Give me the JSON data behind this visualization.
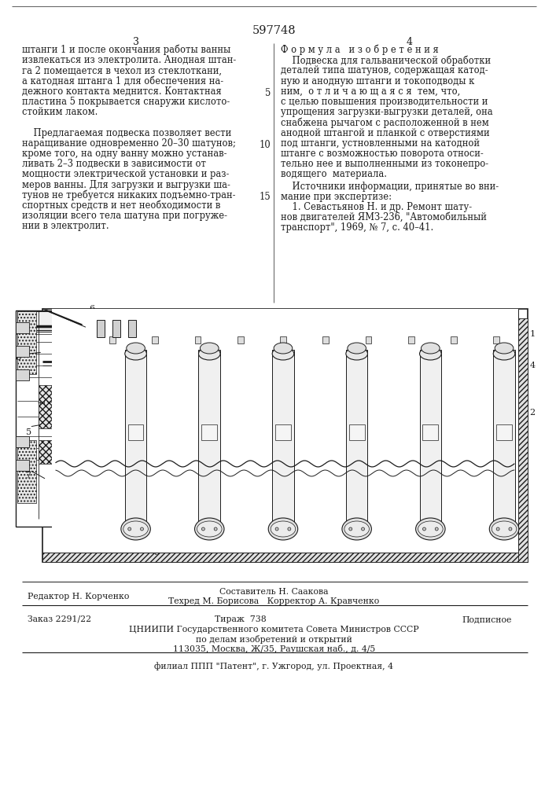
{
  "patent_number": "597748",
  "left_col_text": [
    "штанги 1 и после окончания работы ванны",
    "извлекаться из электролита. Анодная штан-",
    "га 2 помещается в чехол из стеклоткани,",
    "а катодная штанга 1 для обеспечения на-",
    "дежного контакта меднится. Контактная",
    "пластина 5 покрывается снаружи кислото-",
    "стойким лаком.",
    "",
    "    Предлагаемая подвеска позволяет вести",
    "наращивание одновременно 20–30 шатунов;",
    "кроме того, на одну ванну можно устанав-",
    "ливать 2–3 подвески в зависимости от",
    "мощности электрической установки и раз-",
    "меров ванны. Для загрузки и выгрузки ша-",
    "тунов не требуется никаких подъемно-тран-",
    "спортных средств и нет необходимости в",
    "изоляции всего тела шатуна при погруже-",
    "нии в электролит."
  ],
  "right_col_title": "Ф о р м у л а   и з о б р е т е н и я",
  "right_col_text": [
    "    Подвеска для гальванической обработки",
    "деталей типа шатунов, содержащая катод-",
    "ную и анодную штанги и токоподводы к",
    "ним,  о т л и ч а ю щ а я с я  тем, что,",
    "с целью повышения производительности и",
    "упрощения загрузки-выгрузки деталей, она",
    "снабжена рычагом с расположенной в нем",
    "анодной штангой и планкой с отверстиями",
    "под штанги, устновленными на катодной",
    "штанге с возможностью поворота относи-",
    "тельно нее и выполненными из токонепро-",
    "водящего  материала."
  ],
  "src_header1": "    Источники информации, принятые во вни-",
  "src_header2": "мание при экспертизе:",
  "src_text": [
    "    1. Севастьянов Н. и др. Ремонт шату-",
    "нов двигателей ЯМЗ-236, \"Автомобильный",
    "транспорт\", 1969, № 7, с. 40–41."
  ],
  "footer_editor": "Редактор Н. Корченко",
  "footer_comp": "Составитель Н. Саакова",
  "footer_tech": "Техред М. Борисова",
  "footer_corr": "Корректор А. Кравченко",
  "footer_order": "Заказ 2291/22",
  "footer_tir": "Тираж  738",
  "footer_pod": "Подписное",
  "footer_org1": "ЦНИИПИ Государственного комитета Совета Министров СССР",
  "footer_org2": "по делам изобретений и открытий",
  "footer_addr": "113035, Москва, Ж/35, Раушская наб., д. 4/5",
  "footer_fil": "филиал ППП \"Патент\", г. Ужгород, ул. Проектная, 4",
  "bg": "#ffffff",
  "ink": "#1c1c1c"
}
